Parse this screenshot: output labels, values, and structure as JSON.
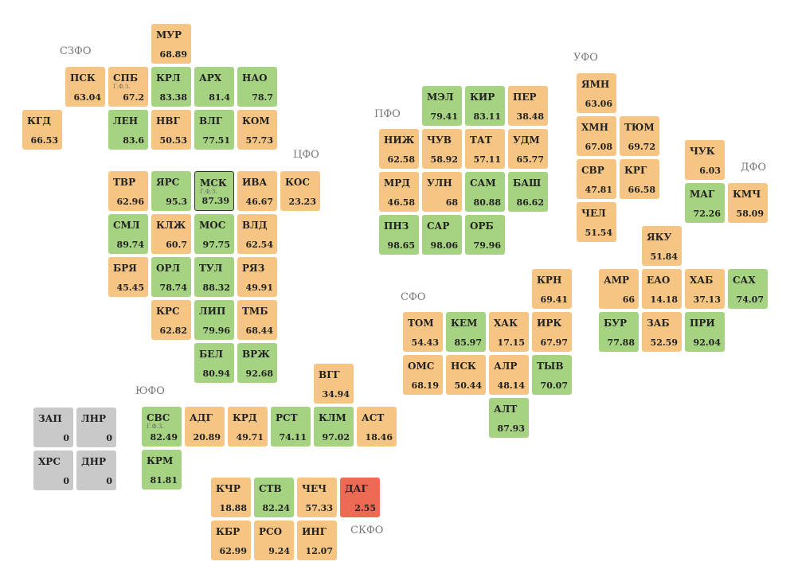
{
  "districts": [
    {
      "name": "СЗФО",
      "regions": [
        {
          "code": "МУР",
          "value": 68.89,
          "color": "#f6c583"
        },
        {
          "code": "ПСК",
          "value": 63.04,
          "color": "#f6c583"
        },
        {
          "code": "СПБ",
          "value": 67.2,
          "color": "#f6c583",
          "note": "Г.Ф.З."
        },
        {
          "code": "КРЛ",
          "value": 83.38,
          "color": "#a5d381"
        },
        {
          "code": "АРХ",
          "value": 81.4,
          "color": "#a5d381"
        },
        {
          "code": "НАО",
          "value": 78.7,
          "color": "#a5d381"
        },
        {
          "code": "КГД",
          "value": 66.53,
          "color": "#f6c583"
        },
        {
          "code": "ЛЕН",
          "value": 83.6,
          "color": "#a5d381"
        },
        {
          "code": "НВГ",
          "value": 50.53,
          "color": "#f6c583"
        },
        {
          "code": "ВЛГ",
          "value": 77.51,
          "color": "#a5d381"
        },
        {
          "code": "КОМ",
          "value": 57.73,
          "color": "#f6c583"
        }
      ]
    },
    {
      "name": "ЦФО",
      "regions": [
        {
          "code": "ТВР",
          "value": 62.96,
          "color": "#f6c583"
        },
        {
          "code": "ЯРС",
          "value": 95.3,
          "color": "#a5d381"
        },
        {
          "code": "МСК",
          "value": 87.39,
          "color": "#a5d381",
          "note": "Г.Ф.З."
        },
        {
          "code": "ИВА",
          "value": 46.67,
          "color": "#f6c583"
        },
        {
          "code": "КОС",
          "value": 23.23,
          "color": "#f6c583"
        },
        {
          "code": "СМЛ",
          "value": 89.74,
          "color": "#a5d381"
        },
        {
          "code": "КЛЖ",
          "value": 60.7,
          "color": "#f6c583"
        },
        {
          "code": "МОС",
          "value": 97.75,
          "color": "#a5d381"
        },
        {
          "code": "ВЛД",
          "value": 62.54,
          "color": "#f6c583"
        },
        {
          "code": "БРЯ",
          "value": 45.45,
          "color": "#f6c583"
        },
        {
          "code": "ОРЛ",
          "value": 78.74,
          "color": "#a5d381"
        },
        {
          "code": "ТУЛ",
          "value": 88.32,
          "color": "#a5d381"
        },
        {
          "code": "РЯЗ",
          "value": 49.91,
          "color": "#f6c583"
        },
        {
          "code": "КРС",
          "value": 62.82,
          "color": "#f6c583"
        },
        {
          "code": "ЛИП",
          "value": 79.96,
          "color": "#a5d381"
        },
        {
          "code": "ТМБ",
          "value": 68.44,
          "color": "#f6c583"
        },
        {
          "code": "БЕЛ",
          "value": 80.94,
          "color": "#a5d381"
        },
        {
          "code": "ВРЖ",
          "value": 92.68,
          "color": "#a5d381"
        }
      ]
    },
    {
      "name": "ПФО",
      "regions": [
        {
          "code": "МЭЛ",
          "value": 79.41,
          "color": "#a5d381"
        },
        {
          "code": "КИР",
          "value": 83.11,
          "color": "#a5d381"
        },
        {
          "code": "ПЕР",
          "value": 38.48,
          "color": "#f6c583"
        },
        {
          "code": "НИЖ",
          "value": 62.58,
          "color": "#f6c583"
        },
        {
          "code": "ЧУВ",
          "value": 58.92,
          "color": "#f6c583"
        },
        {
          "code": "ТАТ",
          "value": 57.11,
          "color": "#f6c583"
        },
        {
          "code": "УДМ",
          "value": 65.77,
          "color": "#f6c583"
        },
        {
          "code": "МРД",
          "value": 46.58,
          "color": "#f6c583"
        },
        {
          "code": "УЛН",
          "value": 68,
          "color": "#f6c583"
        },
        {
          "code": "САМ",
          "value": 80.88,
          "color": "#a5d381"
        },
        {
          "code": "БАШ",
          "value": 86.62,
          "color": "#a5d381"
        },
        {
          "code": "ПНЗ",
          "value": 98.65,
          "color": "#a5d381"
        },
        {
          "code": "САР",
          "value": 98.06,
          "color": "#a5d381"
        },
        {
          "code": "ОРБ",
          "value": 79.96,
          "color": "#a5d381"
        }
      ]
    },
    {
      "name": "УФО",
      "regions": [
        {
          "code": "ЯМН",
          "value": 63.06,
          "color": "#f6c583"
        },
        {
          "code": "ХМН",
          "value": 67.08,
          "color": "#f6c583"
        },
        {
          "code": "ТЮМ",
          "value": 69.72,
          "color": "#f6c583"
        },
        {
          "code": "СВР",
          "value": 47.81,
          "color": "#f6c583"
        },
        {
          "code": "КРГ",
          "value": 66.58,
          "color": "#f6c583"
        },
        {
          "code": "ЧЕЛ",
          "value": 51.54,
          "color": "#f6c583"
        }
      ]
    },
    {
      "name": "ДФО",
      "regions": [
        {
          "code": "ЧУК",
          "value": 6.03,
          "color": "#f6c583"
        },
        {
          "code": "МАГ",
          "value": 72.26,
          "color": "#a5d381"
        },
        {
          "code": "КМЧ",
          "value": 58.09,
          "color": "#f6c583"
        },
        {
          "code": "ЯКУ",
          "value": 51.84,
          "color": "#f6c583"
        },
        {
          "code": "АМР",
          "value": 66,
          "color": "#f6c583"
        },
        {
          "code": "ЕАО",
          "value": 14.18,
          "color": "#f6c583"
        },
        {
          "code": "ХАБ",
          "value": 37.13,
          "color": "#f6c583"
        },
        {
          "code": "САХ",
          "value": 74.07,
          "color": "#a5d381"
        },
        {
          "code": "БУР",
          "value": 77.88,
          "color": "#a5d381"
        },
        {
          "code": "ЗАБ",
          "value": 52.59,
          "color": "#f6c583"
        },
        {
          "code": "ПРИ",
          "value": 92.04,
          "color": "#a5d381"
        }
      ]
    },
    {
      "name": "СФО",
      "regions": [
        {
          "code": "КРН",
          "value": 69.41,
          "color": "#f6c583"
        },
        {
          "code": "ТОМ",
          "value": 54.43,
          "color": "#f6c583"
        },
        {
          "code": "КЕМ",
          "value": 85.97,
          "color": "#a5d381"
        },
        {
          "code": "ХАК",
          "value": 17.15,
          "color": "#f6c583"
        },
        {
          "code": "ИРК",
          "value": 67.97,
          "color": "#f6c583"
        },
        {
          "code": "ОМС",
          "value": 68.19,
          "color": "#f6c583"
        },
        {
          "code": "НСК",
          "value": 50.44,
          "color": "#f6c583"
        },
        {
          "code": "АЛР",
          "value": 48.14,
          "color": "#f6c583"
        },
        {
          "code": "ТЫВ",
          "value": 70.07,
          "color": "#a5d381"
        },
        {
          "code": "АЛТ",
          "value": 87.93,
          "color": "#a5d381"
        }
      ]
    },
    {
      "name": "ЮФО",
      "regions": [
        {
          "code": "ВГГ",
          "value": 34.94,
          "color": "#f6c583"
        },
        {
          "code": "СВС",
          "value": 82.49,
          "color": "#a5d381",
          "note": "Г.Ф.З."
        },
        {
          "code": "АДГ",
          "value": 20.89,
          "color": "#f6c583"
        },
        {
          "code": "КРД",
          "value": 49.71,
          "color": "#f6c583"
        },
        {
          "code": "РСТ",
          "value": 74.11,
          "color": "#a5d381"
        },
        {
          "code": "КЛМ",
          "value": 97.02,
          "color": "#a5d381"
        },
        {
          "code": "АСТ",
          "value": 18.46,
          "color": "#f6c583"
        },
        {
          "code": "КРМ",
          "value": 81.81,
          "color": "#a5d381"
        },
        {
          "code": "ЗАП",
          "value": 0,
          "color": "#c9c9c9"
        },
        {
          "code": "ЛНР",
          "value": 0,
          "color": "#c9c9c9"
        },
        {
          "code": "ХРС",
          "value": 0,
          "color": "#c9c9c9"
        },
        {
          "code": "ДНР",
          "value": 0,
          "color": "#c9c9c9"
        }
      ]
    },
    {
      "name": "СКФО",
      "regions": [
        {
          "code": "КЧР",
          "value": 18.88,
          "color": "#f6c583"
        },
        {
          "code": "СТВ",
          "value": 82.24,
          "color": "#a5d381"
        },
        {
          "code": "ЧЕЧ",
          "value": 57.33,
          "color": "#f6c583"
        },
        {
          "code": "ДАГ",
          "value": 2.55,
          "color": "#ef6a54"
        },
        {
          "code": "КБР",
          "value": 62.99,
          "color": "#f6c583"
        },
        {
          "code": "РСО",
          "value": 9.24,
          "color": "#f6c583"
        },
        {
          "code": "ИНГ",
          "value": 12.07,
          "color": "#f6c583"
        }
      ]
    }
  ]
}
